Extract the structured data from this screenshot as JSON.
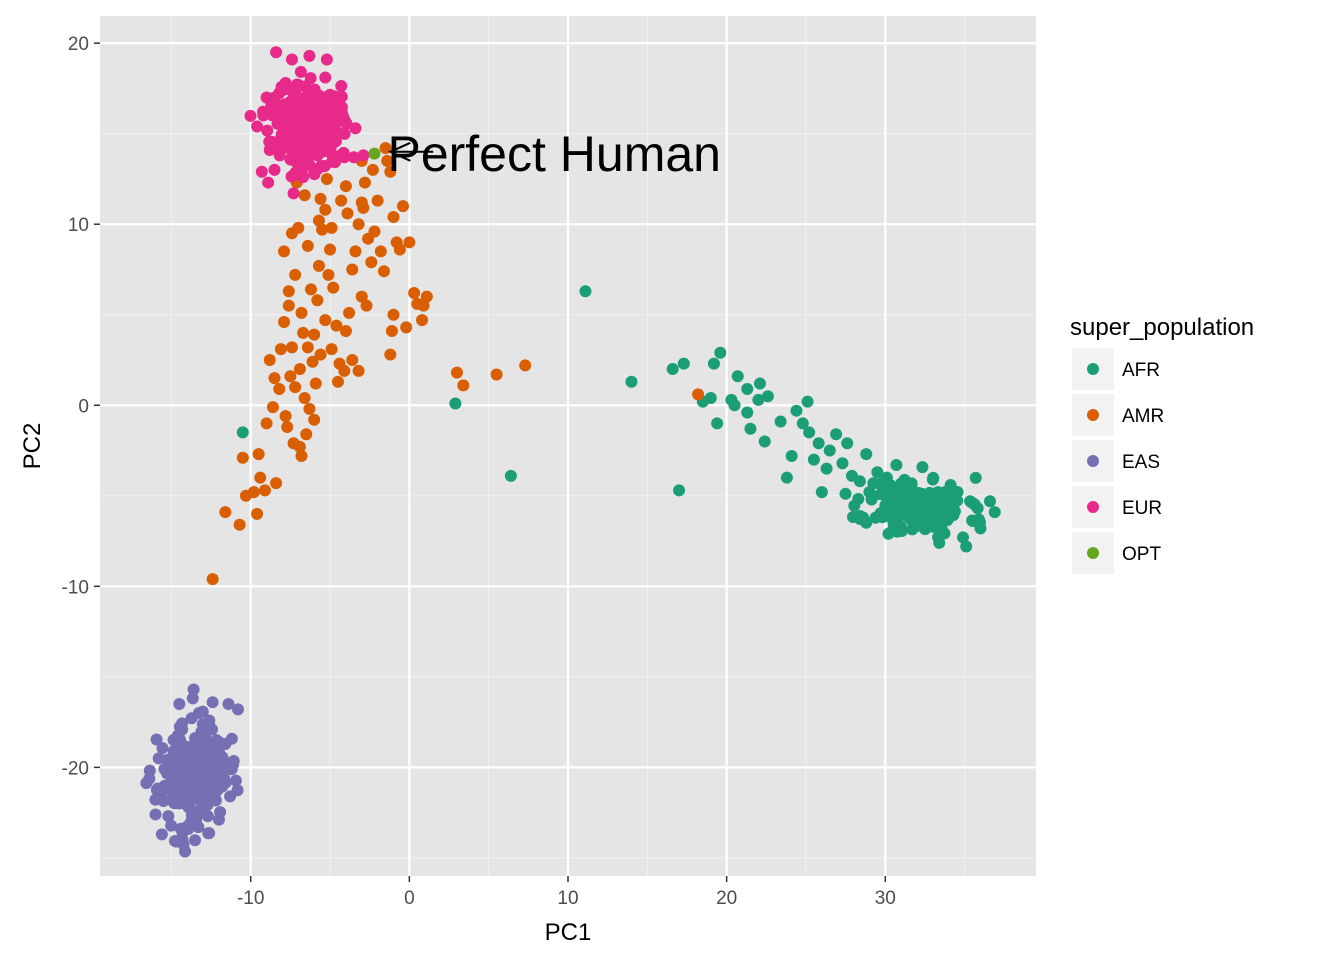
{
  "chart_data": {
    "type": "scatter",
    "title": "",
    "xlabel": "PC1",
    "ylabel": "PC2",
    "xlim": [
      -19.5,
      39.5
    ],
    "ylim": [
      -26,
      21.5
    ],
    "x_ticks": [
      -10,
      0,
      10,
      20,
      30
    ],
    "x_tick_labels": [
      "-10",
      "0",
      "10",
      "20",
      "30"
    ],
    "y_ticks": [
      -20,
      -10,
      0,
      10,
      20
    ],
    "y_tick_labels": [
      "-20",
      "-10",
      "0",
      "10",
      "20"
    ],
    "grid": true,
    "panel_background": "#e5e5e5",
    "legend": {
      "title": "super_population",
      "placement": "right",
      "entries": [
        {
          "label": "AFR",
          "color": "#1b9e77"
        },
        {
          "label": "AMR",
          "color": "#d95f02"
        },
        {
          "label": "EAS",
          "color": "#7570b3"
        },
        {
          "label": "EUR",
          "color": "#e7298a"
        },
        {
          "label": "OPT",
          "color": "#66a61e"
        }
      ]
    },
    "annotation": {
      "text": "Perfect Human",
      "x": -1.0,
      "y": 14.0,
      "arrow_from": [
        1.5,
        14.0
      ],
      "arrow_to": [
        -1.2,
        14.0
      ]
    },
    "series": [
      {
        "name": "AFR",
        "color": "#1b9e77",
        "cluster": {
          "center": [
            32.0,
            -5.6
          ],
          "spread": [
            1.6,
            0.8
          ],
          "count": 180,
          "seed": 11
        },
        "points": [
          [
            11.1,
            6.3
          ],
          [
            14.0,
            1.3
          ],
          [
            16.6,
            2.0
          ],
          [
            17.3,
            2.3
          ],
          [
            19.2,
            2.3
          ],
          [
            19.6,
            2.9
          ],
          [
            18.5,
            0.2
          ],
          [
            19.0,
            0.4
          ],
          [
            19.4,
            -1.0
          ],
          [
            20.3,
            0.3
          ],
          [
            20.5,
            0.0
          ],
          [
            20.7,
            1.6
          ],
          [
            21.3,
            0.9
          ],
          [
            21.3,
            -0.4
          ],
          [
            21.5,
            -1.3
          ],
          [
            22.1,
            1.2
          ],
          [
            22.0,
            0.3
          ],
          [
            22.4,
            -2.0
          ],
          [
            22.6,
            0.5
          ],
          [
            23.4,
            -0.9
          ],
          [
            23.8,
            -4.0
          ],
          [
            24.1,
            -2.8
          ],
          [
            24.4,
            -0.3
          ],
          [
            24.8,
            -1.0
          ],
          [
            25.1,
            0.2
          ],
          [
            25.2,
            -1.5
          ],
          [
            25.5,
            -3.0
          ],
          [
            25.8,
            -2.1
          ],
          [
            26.0,
            -4.8
          ],
          [
            26.3,
            -3.5
          ],
          [
            26.5,
            -2.5
          ],
          [
            26.9,
            -1.6
          ],
          [
            27.3,
            -3.2
          ],
          [
            27.6,
            -2.1
          ],
          [
            27.9,
            -3.9
          ],
          [
            28.4,
            -4.2
          ],
          [
            28.8,
            -2.7
          ],
          [
            29.0,
            -4.8
          ],
          [
            29.5,
            -3.7
          ],
          [
            30.1,
            -4.0
          ],
          [
            30.4,
            -5.1
          ],
          [
            30.7,
            -3.3
          ],
          [
            35.5,
            -5.4
          ],
          [
            35.9,
            -6.3
          ],
          [
            36.0,
            -6.8
          ],
          [
            36.6,
            -5.3
          ],
          [
            36.9,
            -5.9
          ],
          [
            35.1,
            -7.8
          ],
          [
            34.9,
            -7.3
          ],
          [
            33.4,
            -7.6
          ],
          [
            30.2,
            -7.1
          ],
          [
            28.6,
            -6.2
          ],
          [
            2.9,
            0.1
          ],
          [
            6.4,
            -3.9
          ],
          [
            17.0,
            -4.7
          ],
          [
            -10.5,
            -1.5
          ]
        ]
      },
      {
        "name": "AMR",
        "color": "#d95f02",
        "points": [
          [
            -12.4,
            -9.6
          ],
          [
            -11.6,
            -5.9
          ],
          [
            -10.7,
            -6.6
          ],
          [
            -10.5,
            -2.9
          ],
          [
            -10.3,
            -5.0
          ],
          [
            -9.6,
            -6.0
          ],
          [
            -9.8,
            -4.8
          ],
          [
            -9.5,
            -2.7
          ],
          [
            -9.4,
            -4.0
          ],
          [
            -9.1,
            -4.7
          ],
          [
            -8.4,
            -4.3
          ],
          [
            -8.6,
            -0.1
          ],
          [
            -8.2,
            0.9
          ],
          [
            -7.8,
            -0.6
          ],
          [
            -8.1,
            3.1
          ],
          [
            -7.9,
            4.6
          ],
          [
            -7.5,
            1.6
          ],
          [
            -7.4,
            3.2
          ],
          [
            -7.6,
            6.3
          ],
          [
            -7.9,
            8.5
          ],
          [
            -7.4,
            9.5
          ],
          [
            -7.0,
            9.8
          ],
          [
            -7.2,
            7.2
          ],
          [
            -6.8,
            5.1
          ],
          [
            -6.9,
            2.0
          ],
          [
            -6.6,
            0.4
          ],
          [
            -6.5,
            -1.6
          ],
          [
            -6.9,
            -2.3
          ],
          [
            -6.8,
            -2.8
          ],
          [
            -6.3,
            -0.2
          ],
          [
            -6.1,
            2.4
          ],
          [
            -6.0,
            3.9
          ],
          [
            -5.8,
            5.8
          ],
          [
            -5.7,
            7.7
          ],
          [
            -5.5,
            9.7
          ],
          [
            -5.3,
            10.8
          ],
          [
            -5.2,
            12.5
          ],
          [
            -5.6,
            11.4
          ],
          [
            -5.0,
            8.6
          ],
          [
            -4.8,
            6.5
          ],
          [
            -4.6,
            4.4
          ],
          [
            -4.4,
            2.3
          ],
          [
            -4.1,
            1.9
          ],
          [
            -4.0,
            4.1
          ],
          [
            -3.8,
            5.1
          ],
          [
            -3.6,
            7.5
          ],
          [
            -3.4,
            8.5
          ],
          [
            -3.2,
            10.0
          ],
          [
            -3.0,
            11.2
          ],
          [
            -2.8,
            12.3
          ],
          [
            -2.6,
            9.2
          ],
          [
            -2.4,
            7.9
          ],
          [
            -2.2,
            9.6
          ],
          [
            -2.0,
            11.3
          ],
          [
            -1.8,
            8.5
          ],
          [
            -1.6,
            7.4
          ],
          [
            -1.5,
            14.2
          ],
          [
            -1.4,
            13.5
          ],
          [
            -1.2,
            12.9
          ],
          [
            -1.0,
            10.4
          ],
          [
            -0.8,
            9.0
          ],
          [
            -0.6,
            8.6
          ],
          [
            -0.4,
            11.0
          ],
          [
            -0.2,
            4.3
          ],
          [
            0.0,
            9.0
          ],
          [
            0.3,
            6.2
          ],
          [
            0.5,
            5.6
          ],
          [
            0.8,
            4.7
          ],
          [
            0.9,
            5.5
          ],
          [
            1.1,
            6.0
          ],
          [
            -1.1,
            4.1
          ],
          [
            -1.2,
            2.8
          ],
          [
            -3.2,
            1.9
          ],
          [
            -4.5,
            1.3
          ],
          [
            -5.6,
            2.8
          ],
          [
            -6.4,
            3.2
          ],
          [
            -3.6,
            2.5
          ],
          [
            3.0,
            1.8
          ],
          [
            3.4,
            1.1
          ],
          [
            5.5,
            1.7
          ],
          [
            7.3,
            2.2
          ],
          [
            18.2,
            0.6
          ],
          [
            -4.0,
            12.1
          ],
          [
            -3.0,
            13.5
          ],
          [
            -2.3,
            13.0
          ],
          [
            -6.6,
            11.6
          ],
          [
            -7.1,
            12.3
          ],
          [
            -6.0,
            13.0
          ],
          [
            -5.7,
            10.2
          ],
          [
            -4.9,
            9.8
          ],
          [
            -4.3,
            11.3
          ],
          [
            -3.9,
            10.6
          ],
          [
            -2.9,
            10.9
          ],
          [
            -6.4,
            8.8
          ],
          [
            -5.1,
            7.2
          ],
          [
            -6.2,
            6.4
          ],
          [
            -7.6,
            5.5
          ],
          [
            -3.0,
            6.0
          ],
          [
            -2.7,
            5.5
          ],
          [
            -1.0,
            5.0
          ],
          [
            -5.3,
            4.7
          ],
          [
            -6.7,
            4.0
          ],
          [
            -4.9,
            3.1
          ],
          [
            -7.2,
            1.0
          ],
          [
            -5.9,
            1.2
          ],
          [
            -8.5,
            1.5
          ],
          [
            -7.7,
            -1.2
          ],
          [
            -6.0,
            -0.8
          ],
          [
            -7.3,
            -2.1
          ],
          [
            -9.0,
            -1.0
          ],
          [
            -8.8,
            2.5
          ]
        ]
      },
      {
        "name": "EAS",
        "color": "#7570b3",
        "cluster": {
          "center": [
            -13.6,
            -20.5
          ],
          "spread": [
            1.1,
            1.4
          ],
          "count": 240,
          "seed": 23
        },
        "points": [
          [
            -13.6,
            -15.7
          ],
          [
            -14.5,
            -16.5
          ],
          [
            -12.4,
            -16.4
          ],
          [
            -11.4,
            -16.5
          ],
          [
            -10.8,
            -16.8
          ],
          [
            -16.0,
            -22.6
          ],
          [
            -15.6,
            -23.7
          ],
          [
            -14.7,
            -24.1
          ],
          [
            -13.3,
            -23.3
          ],
          [
            -15.8,
            -19.5
          ],
          [
            -11.3,
            -21.6
          ],
          [
            -11.2,
            -20.1
          ],
          [
            -12.0,
            -18.6
          ],
          [
            -14.3,
            -23.6
          ]
        ]
      },
      {
        "name": "EUR",
        "color": "#e7298a",
        "cluster": {
          "center": [
            -6.6,
            15.5
          ],
          "spread": [
            1.1,
            1.2
          ],
          "count": 260,
          "seed": 37
        },
        "points": [
          [
            -8.4,
            19.5
          ],
          [
            -7.4,
            19.1
          ],
          [
            -6.3,
            19.3
          ],
          [
            -5.2,
            19.1
          ],
          [
            -5.3,
            18.1
          ],
          [
            -9.6,
            15.4
          ],
          [
            -9.3,
            12.9
          ],
          [
            -8.9,
            12.3
          ],
          [
            -8.5,
            13.0
          ],
          [
            -8.8,
            14.1
          ],
          [
            -7.3,
            11.7
          ],
          [
            -6.7,
            12.6
          ],
          [
            -6.0,
            12.9
          ],
          [
            -5.4,
            13.2
          ],
          [
            -4.1,
            13.7
          ],
          [
            -3.5,
            13.7
          ],
          [
            -2.9,
            13.8
          ],
          [
            -3.4,
            15.3
          ],
          [
            -4.2,
            16.0
          ],
          [
            -9.0,
            17.0
          ]
        ]
      },
      {
        "name": "OPT",
        "color": "#66a61e",
        "points": [
          [
            -2.2,
            13.9
          ]
        ]
      }
    ]
  }
}
